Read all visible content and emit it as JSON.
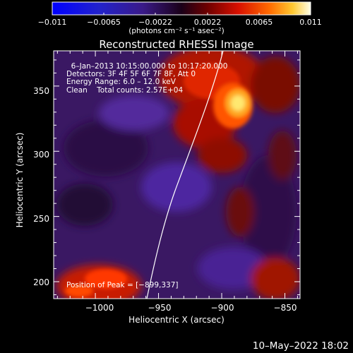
{
  "colorbar": {
    "ticks": [
      "−0.011",
      "−0.0065",
      "−0.0022",
      "0.0022",
      "0.0065",
      "0.011"
    ],
    "unit_label": "(photons cm⁻² s⁻¹ asec⁻²)",
    "range": [
      -0.011,
      0.011
    ]
  },
  "title": "Reconstructed RHESSI Image",
  "info_lines": [
    "  6–Jan–2013 10:15:00.000 to 10:17:20.000",
    "Detectors: 3F 4F 5F 6F 7F 8F, Att 0",
    "Energy Range: 6.0 – 12.0 keV",
    "Clean    Total counts: 2.57E+04"
  ],
  "peak_label": "Position of Peak = [−899,337]",
  "axes": {
    "xlabel": "Heliocentric X (arcsec)",
    "ylabel": "Heliocentric Y (arcsec)",
    "xticks": [
      {
        "value": -1000,
        "label": "−1000"
      },
      {
        "value": -950,
        "label": "−950"
      },
      {
        "value": -900,
        "label": "−900"
      },
      {
        "value": -850,
        "label": "−850"
      }
    ],
    "yticks": [
      {
        "value": 200,
        "label": "200"
      },
      {
        "value": 250,
        "label": "250"
      },
      {
        "value": 300,
        "label": "300"
      },
      {
        "value": 350,
        "label": "350"
      }
    ],
    "xlim": [
      -1033,
      -838
    ],
    "ylim": [
      187,
      377
    ]
  },
  "peak": {
    "x": -899,
    "y": 337
  },
  "timestamp": "10–May–2022 18:02"
}
